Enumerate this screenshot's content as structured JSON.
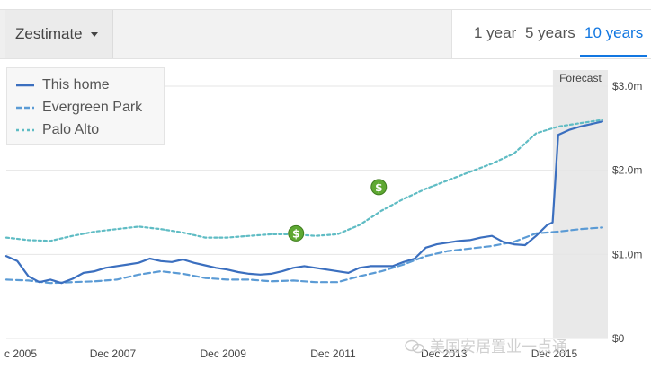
{
  "header": {
    "dropdown_label": "Zestimate",
    "tabs": [
      {
        "label": "1 year",
        "active": false
      },
      {
        "label": "5 years",
        "active": false
      },
      {
        "label": "10 years",
        "active": true
      }
    ]
  },
  "legend": [
    {
      "label": "This home",
      "color": "#3b6fbf",
      "style": "solid"
    },
    {
      "label": "Evergreen Park",
      "color": "#5b9bd5",
      "style": "dashed"
    },
    {
      "label": "Palo Alto",
      "color": "#5fbcc4",
      "style": "dotted"
    }
  ],
  "watermark": "美国安居置业一点通",
  "chart_data": {
    "type": "line",
    "forecast_label": "Forecast",
    "forecast_range": [
      2016.0,
      2016.8
    ],
    "x_tick_labels": [
      "c 2005",
      "Dec 2007",
      "Dec 2009",
      "Dec 2011",
      "Dec 2013",
      "Dec 2015"
    ],
    "x_tick_positions": [
      2005.9,
      2007.9,
      2009.9,
      2011.9,
      2013.9,
      2015.9
    ],
    "xlim": [
      2005.9,
      2016.8
    ],
    "y_tick_labels": [
      "$3.0m",
      "$2.0m",
      "$1.0m",
      "$0"
    ],
    "y_tick_values": [
      3.0,
      2.0,
      1.0,
      0
    ],
    "ylim": [
      0,
      3.0
    ],
    "grid": true,
    "legend_position": "top-left",
    "sale_markers": [
      {
        "x": 2011.15,
        "y": 1.25,
        "label": "$"
      },
      {
        "x": 2012.65,
        "y": 1.8,
        "label": "$"
      }
    ],
    "series": [
      {
        "name": "This home",
        "color": "#3b6fbf",
        "x": [
          2005.9,
          2006.1,
          2006.3,
          2006.5,
          2006.7,
          2006.9,
          2007.1,
          2007.3,
          2007.5,
          2007.7,
          2007.9,
          2008.1,
          2008.3,
          2008.5,
          2008.7,
          2008.9,
          2009.1,
          2009.3,
          2009.5,
          2009.7,
          2009.9,
          2010.1,
          2010.3,
          2010.5,
          2010.7,
          2010.9,
          2011.1,
          2011.3,
          2011.5,
          2011.7,
          2011.9,
          2012.1,
          2012.3,
          2012.5,
          2012.7,
          2012.9,
          2013.1,
          2013.3,
          2013.5,
          2013.7,
          2013.9,
          2014.1,
          2014.3,
          2014.5,
          2014.7,
          2014.9,
          2015.1,
          2015.3,
          2015.5,
          2015.7,
          2015.8,
          2015.9,
          2016.1,
          2016.3,
          2016.5,
          2016.7
        ],
        "values": [
          0.98,
          0.92,
          0.74,
          0.67,
          0.7,
          0.66,
          0.71,
          0.78,
          0.8,
          0.84,
          0.86,
          0.88,
          0.9,
          0.95,
          0.92,
          0.91,
          0.94,
          0.9,
          0.87,
          0.84,
          0.82,
          0.79,
          0.77,
          0.76,
          0.77,
          0.8,
          0.84,
          0.86,
          0.84,
          0.82,
          0.8,
          0.78,
          0.84,
          0.86,
          0.86,
          0.86,
          0.91,
          0.95,
          1.08,
          1.12,
          1.14,
          1.16,
          1.17,
          1.2,
          1.22,
          1.15,
          1.12,
          1.11,
          1.22,
          1.35,
          1.38,
          2.42,
          2.48,
          2.52,
          2.55,
          2.58
        ]
      },
      {
        "name": "Evergreen Park",
        "color": "#5b9bd5",
        "x": [
          2005.9,
          2006.3,
          2006.7,
          2007.1,
          2007.5,
          2007.9,
          2008.3,
          2008.7,
          2009.1,
          2009.5,
          2009.9,
          2010.3,
          2010.7,
          2011.1,
          2011.5,
          2011.9,
          2012.3,
          2012.7,
          2013.1,
          2013.5,
          2013.9,
          2014.3,
          2014.7,
          2015.1,
          2015.5,
          2015.9,
          2016.3,
          2016.7
        ],
        "values": [
          0.7,
          0.69,
          0.66,
          0.67,
          0.68,
          0.7,
          0.76,
          0.8,
          0.77,
          0.72,
          0.7,
          0.7,
          0.68,
          0.69,
          0.67,
          0.67,
          0.74,
          0.8,
          0.88,
          0.98,
          1.04,
          1.07,
          1.1,
          1.15,
          1.25,
          1.27,
          1.3,
          1.32
        ]
      },
      {
        "name": "Palo Alto",
        "color": "#5fbcc4",
        "x": [
          2005.9,
          2006.3,
          2006.7,
          2007.1,
          2007.5,
          2007.9,
          2008.3,
          2008.7,
          2009.1,
          2009.5,
          2009.9,
          2010.3,
          2010.7,
          2011.1,
          2011.5,
          2011.9,
          2012.3,
          2012.7,
          2013.1,
          2013.5,
          2013.9,
          2014.3,
          2014.7,
          2015.1,
          2015.5,
          2015.9,
          2016.3,
          2016.7
        ],
        "values": [
          1.2,
          1.17,
          1.16,
          1.22,
          1.27,
          1.3,
          1.33,
          1.3,
          1.26,
          1.2,
          1.2,
          1.22,
          1.24,
          1.24,
          1.22,
          1.24,
          1.35,
          1.52,
          1.66,
          1.78,
          1.88,
          1.98,
          2.08,
          2.2,
          2.44,
          2.52,
          2.56,
          2.6
        ]
      }
    ]
  }
}
